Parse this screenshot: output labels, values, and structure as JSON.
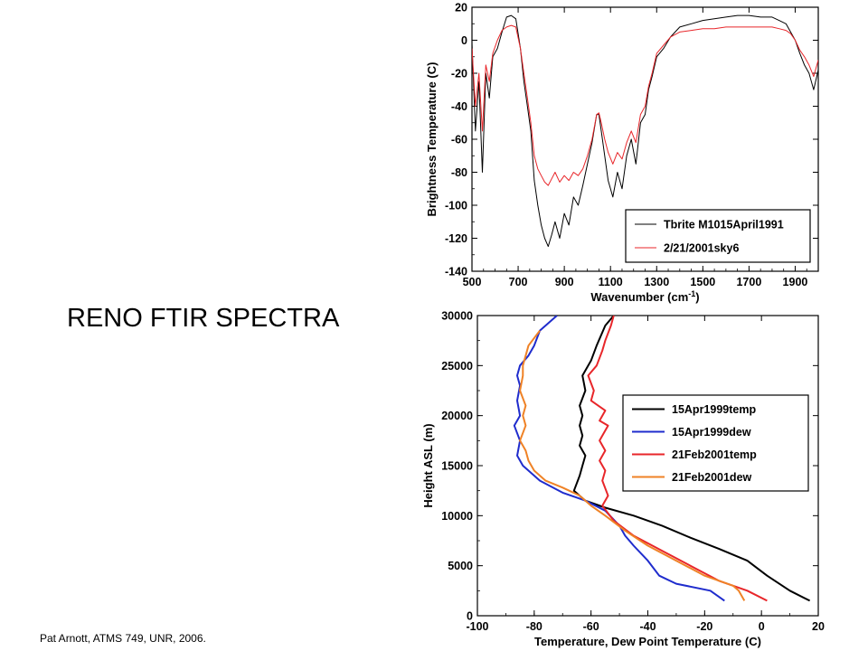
{
  "slide": {
    "title": "RENO FTIR SPECTRA",
    "footer": "Pat Arnott, ATMS 749, UNR, 2006."
  },
  "chart_data": [
    {
      "type": "line",
      "xlabel": "Wavenumber (cm",
      "xlabel_sup": "-1",
      "xlabel_end": ")",
      "ylabel": "Brightness Temperature (C)",
      "xlim": [
        500,
        2000
      ],
      "ylim": [
        -140,
        20
      ],
      "xticks": [
        500,
        700,
        900,
        1100,
        1300,
        1500,
        1700,
        1900
      ],
      "yticks": [
        -140,
        -120,
        -100,
        -80,
        -60,
        -40,
        -20,
        0,
        20
      ],
      "legend_position": "bottom-right",
      "series": [
        {
          "name": "Tbrite M1015April1991",
          "color": "#000000",
          "x": [
            500,
            515,
            530,
            545,
            560,
            575,
            590,
            610,
            630,
            650,
            670,
            690,
            710,
            725,
            740,
            755,
            770,
            785,
            800,
            815,
            830,
            845,
            860,
            880,
            900,
            920,
            940,
            960,
            980,
            1000,
            1020,
            1040,
            1050,
            1060,
            1075,
            1090,
            1110,
            1130,
            1150,
            1170,
            1190,
            1210,
            1230,
            1250,
            1265,
            1280,
            1300,
            1330,
            1360,
            1400,
            1450,
            1500,
            1550,
            1600,
            1650,
            1700,
            1750,
            1800,
            1830,
            1860,
            1880,
            1900,
            1920,
            1940,
            1960,
            1980,
            2000
          ],
          "y": [
            -2,
            -55,
            -25,
            -80,
            -20,
            -35,
            -10,
            -5,
            5,
            14,
            15,
            13,
            -5,
            -25,
            -40,
            -55,
            -85,
            -100,
            -112,
            -120,
            -125,
            -118,
            -110,
            -120,
            -105,
            -112,
            -95,
            -100,
            -88,
            -75,
            -62,
            -45,
            -45,
            -55,
            -70,
            -85,
            -95,
            -80,
            -90,
            -70,
            -60,
            -75,
            -50,
            -45,
            -30,
            -22,
            -10,
            -5,
            2,
            8,
            10,
            12,
            13,
            14,
            15,
            15,
            14,
            14,
            12,
            10,
            5,
            0,
            -8,
            -15,
            -20,
            -30,
            -18
          ]
        },
        {
          "name": "2/21/2001sky6",
          "color": "#e8262a",
          "x": [
            500,
            515,
            530,
            545,
            560,
            575,
            590,
            610,
            630,
            650,
            670,
            690,
            710,
            725,
            740,
            755,
            770,
            785,
            800,
            815,
            830,
            845,
            860,
            880,
            900,
            920,
            940,
            960,
            980,
            1000,
            1020,
            1040,
            1050,
            1060,
            1075,
            1090,
            1110,
            1130,
            1150,
            1170,
            1190,
            1210,
            1230,
            1250,
            1265,
            1280,
            1300,
            1330,
            1360,
            1400,
            1450,
            1500,
            1550,
            1600,
            1650,
            1700,
            1750,
            1800,
            1830,
            1860,
            1880,
            1900,
            1920,
            1940,
            1960,
            1980,
            2000
          ],
          "y": [
            -5,
            -40,
            -20,
            -55,
            -15,
            -25,
            -8,
            0,
            6,
            8,
            9,
            8,
            -5,
            -20,
            -35,
            -50,
            -70,
            -78,
            -82,
            -86,
            -88,
            -84,
            -80,
            -86,
            -82,
            -85,
            -80,
            -82,
            -78,
            -70,
            -60,
            -45,
            -44,
            -50,
            -60,
            -68,
            -75,
            -68,
            -72,
            -62,
            -55,
            -62,
            -45,
            -40,
            -28,
            -20,
            -8,
            -3,
            2,
            5,
            6,
            7,
            7,
            8,
            8,
            8,
            8,
            8,
            7,
            6,
            4,
            0,
            -6,
            -10,
            -15,
            -22,
            -12
          ]
        }
      ]
    },
    {
      "type": "line",
      "xlabel": "Temperature, Dew Point Temperature (C)",
      "ylabel": "Height ASL (m)",
      "xlim": [
        -100,
        20
      ],
      "ylim": [
        0,
        30000
      ],
      "xticks": [
        -100,
        -80,
        -60,
        -40,
        -20,
        0,
        20
      ],
      "yticks": [
        0,
        5000,
        10000,
        15000,
        20000,
        25000,
        30000
      ],
      "legend_position": "top-right",
      "series": [
        {
          "name": "15Apr1999temp",
          "color": "#000000",
          "x": [
            17,
            10,
            2,
            -5,
            -15,
            -25,
            -35,
            -45,
            -55,
            -62,
            -66,
            -64,
            -63,
            -62,
            -64,
            -63,
            -64,
            -63,
            -64,
            -62,
            -63,
            -60,
            -58,
            -55,
            -52
          ],
          "y": [
            1500,
            2500,
            4000,
            5500,
            6700,
            7800,
            9000,
            10000,
            10800,
            11500,
            12500,
            14000,
            15000,
            16000,
            17000,
            18000,
            19000,
            20000,
            21000,
            22500,
            24000,
            25500,
            27000,
            29000,
            30000
          ]
        },
        {
          "name": "15Apr1999dew",
          "color": "#1f2ccd",
          "x": [
            -13,
            -18,
            -30,
            -36,
            -40,
            -45,
            -48,
            -50,
            -55,
            -62,
            -70,
            -78,
            -84,
            -86,
            -85,
            -87,
            -85,
            -86,
            -85,
            -86,
            -85,
            -82,
            -80,
            -78,
            -72
          ],
          "y": [
            1500,
            2500,
            3200,
            4000,
            5500,
            7000,
            8000,
            9000,
            10500,
            11500,
            12300,
            13500,
            15000,
            16000,
            17500,
            19000,
            20000,
            21500,
            23000,
            24000,
            25000,
            26000,
            27000,
            28500,
            30000
          ]
        },
        {
          "name": "21Feb2001temp",
          "color": "#e8262a",
          "x": [
            2,
            -5,
            -15,
            -25,
            -35,
            -45,
            -52,
            -56,
            -54,
            -56,
            -55,
            -57,
            -55,
            -57,
            -54,
            -57,
            -55,
            -60,
            -59,
            -61,
            -58,
            -56,
            -55,
            -53,
            -52
          ],
          "y": [
            1500,
            2500,
            3500,
            5000,
            6500,
            8000,
            9500,
            11000,
            12000,
            13500,
            14500,
            15500,
            16500,
            17500,
            19000,
            19500,
            20500,
            21500,
            22500,
            24000,
            25000,
            26500,
            27500,
            29000,
            30000
          ]
        },
        {
          "name": "21Feb2001dew",
          "color": "#ef8226",
          "x": [
            -6,
            -8,
            -10,
            -20,
            -30,
            -40,
            -48,
            -55,
            -60,
            -64,
            -70,
            -76,
            -80,
            -82,
            -83,
            -85,
            -83,
            -84,
            -83,
            -85,
            -84,
            -84,
            -83,
            -82,
            -78
          ],
          "y": [
            1500,
            2500,
            3000,
            4000,
            5500,
            7000,
            8500,
            10000,
            11000,
            12000,
            12800,
            13500,
            14500,
            15500,
            16500,
            17500,
            19000,
            20000,
            21000,
            22500,
            24000,
            25000,
            26000,
            27000,
            28500
          ]
        }
      ]
    }
  ]
}
